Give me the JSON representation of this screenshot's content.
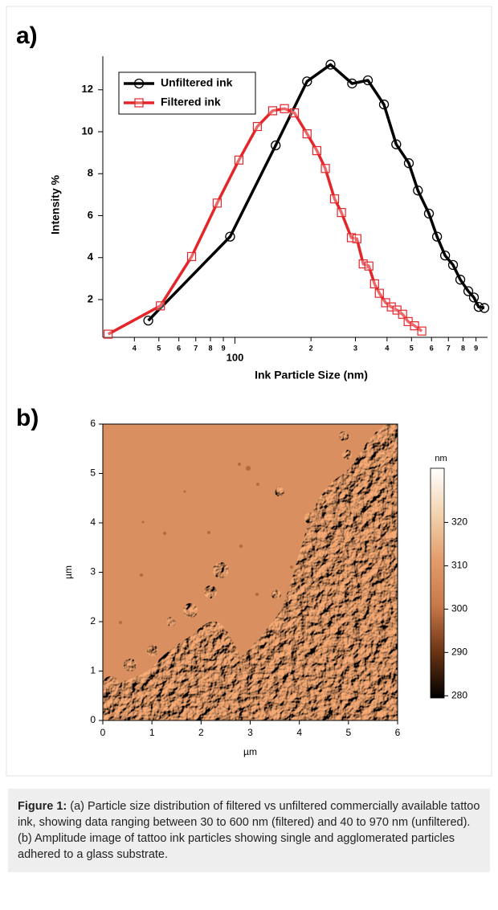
{
  "chart_data": [
    {
      "type": "line",
      "panel_label": "a)",
      "x_label": "Ink Particle Size (nm)",
      "y_label": "Intensity %",
      "x_scale": "log",
      "xlim": [
        30,
        1000
      ],
      "ylim": [
        0.2,
        13.6
      ],
      "xticks": [
        {
          "value": 40,
          "label": "4"
        },
        {
          "value": 50,
          "label": "5"
        },
        {
          "value": 60,
          "label": "6"
        },
        {
          "value": 70,
          "label": "7"
        },
        {
          "value": 80,
          "label": "8"
        },
        {
          "value": 90,
          "label": "9"
        },
        100,
        {
          "value": 200,
          "label": "2"
        },
        {
          "value": 300,
          "label": "3"
        },
        {
          "value": 400,
          "label": "4"
        },
        {
          "value": 500,
          "label": "5"
        },
        {
          "value": 600,
          "label": "6"
        },
        {
          "value": 700,
          "label": "7"
        },
        {
          "value": 800,
          "label": "8"
        },
        {
          "value": 900,
          "label": "9"
        }
      ],
      "yticks": [
        2,
        4,
        6,
        8,
        10,
        12
      ],
      "legend": "top-left",
      "series": [
        {
          "name": "Unfiltered ink",
          "color": "#000000",
          "marker": "circle",
          "x": [
            45.4,
            95.7,
            145,
            193,
            239,
            291,
            336,
            389,
            435,
            488,
            530,
            586,
            631,
            679,
            730,
            780,
            839,
            883,
            922,
            971
          ],
          "values": [
            1.0,
            5.0,
            9.35,
            12.4,
            13.2,
            12.3,
            12.45,
            11.3,
            9.4,
            8.5,
            7.2,
            6.1,
            5.0,
            4.1,
            3.65,
            2.95,
            2.4,
            2.1,
            1.65,
            1.6
          ]
        },
        {
          "name": "Filtered ink",
          "color": "#e3262a",
          "marker": "square",
          "x": [
            31.5,
            50.7,
            67.4,
            85.1,
            103.7,
            122.7,
            141,
            157,
            172,
            193,
            211,
            228,
            248,
            264,
            289,
            304,
            322,
            339,
            357,
            373,
            395,
            416,
            438,
            461,
            485,
            514,
            549
          ],
          "values": [
            0.35,
            1.7,
            4.05,
            6.6,
            8.65,
            10.25,
            11.0,
            11.1,
            10.9,
            9.9,
            9.1,
            8.25,
            6.8,
            6.15,
            4.95,
            4.9,
            3.7,
            3.6,
            2.75,
            2.3,
            1.85,
            1.65,
            1.5,
            1.3,
            0.95,
            0.75,
            0.5
          ]
        }
      ]
    },
    {
      "type": "image",
      "panel_label": "b)",
      "x_label": "µm",
      "y_label": "µm",
      "xlim": [
        0,
        6
      ],
      "ylim": [
        0,
        6
      ],
      "xticks": [
        0,
        1,
        2,
        3,
        4,
        5,
        6
      ],
      "yticks": [
        0,
        1,
        2,
        3,
        4,
        5,
        6
      ],
      "colorbar": {
        "label": "nm",
        "lim": [
          279.5,
          332.5
        ],
        "ticks": [
          280,
          290,
          300,
          310,
          320
        ],
        "colors": [
          "#000000",
          "#6b3414",
          "#c8784a",
          "#e29c6c",
          "#f3d2ae",
          "#ffffff"
        ]
      }
    }
  ],
  "caption": {
    "label": "Figure 1:",
    "text": "(a) Particle size distribution of filtered vs unfiltered commercially available tattoo ink, showing data ranging between 30 to 600 nm (filtered) and 40 to 970 nm (unfiltered). (b) Amplitude image of tattoo ink particles showing single and agglomerated particles adhered to a glass substrate."
  }
}
